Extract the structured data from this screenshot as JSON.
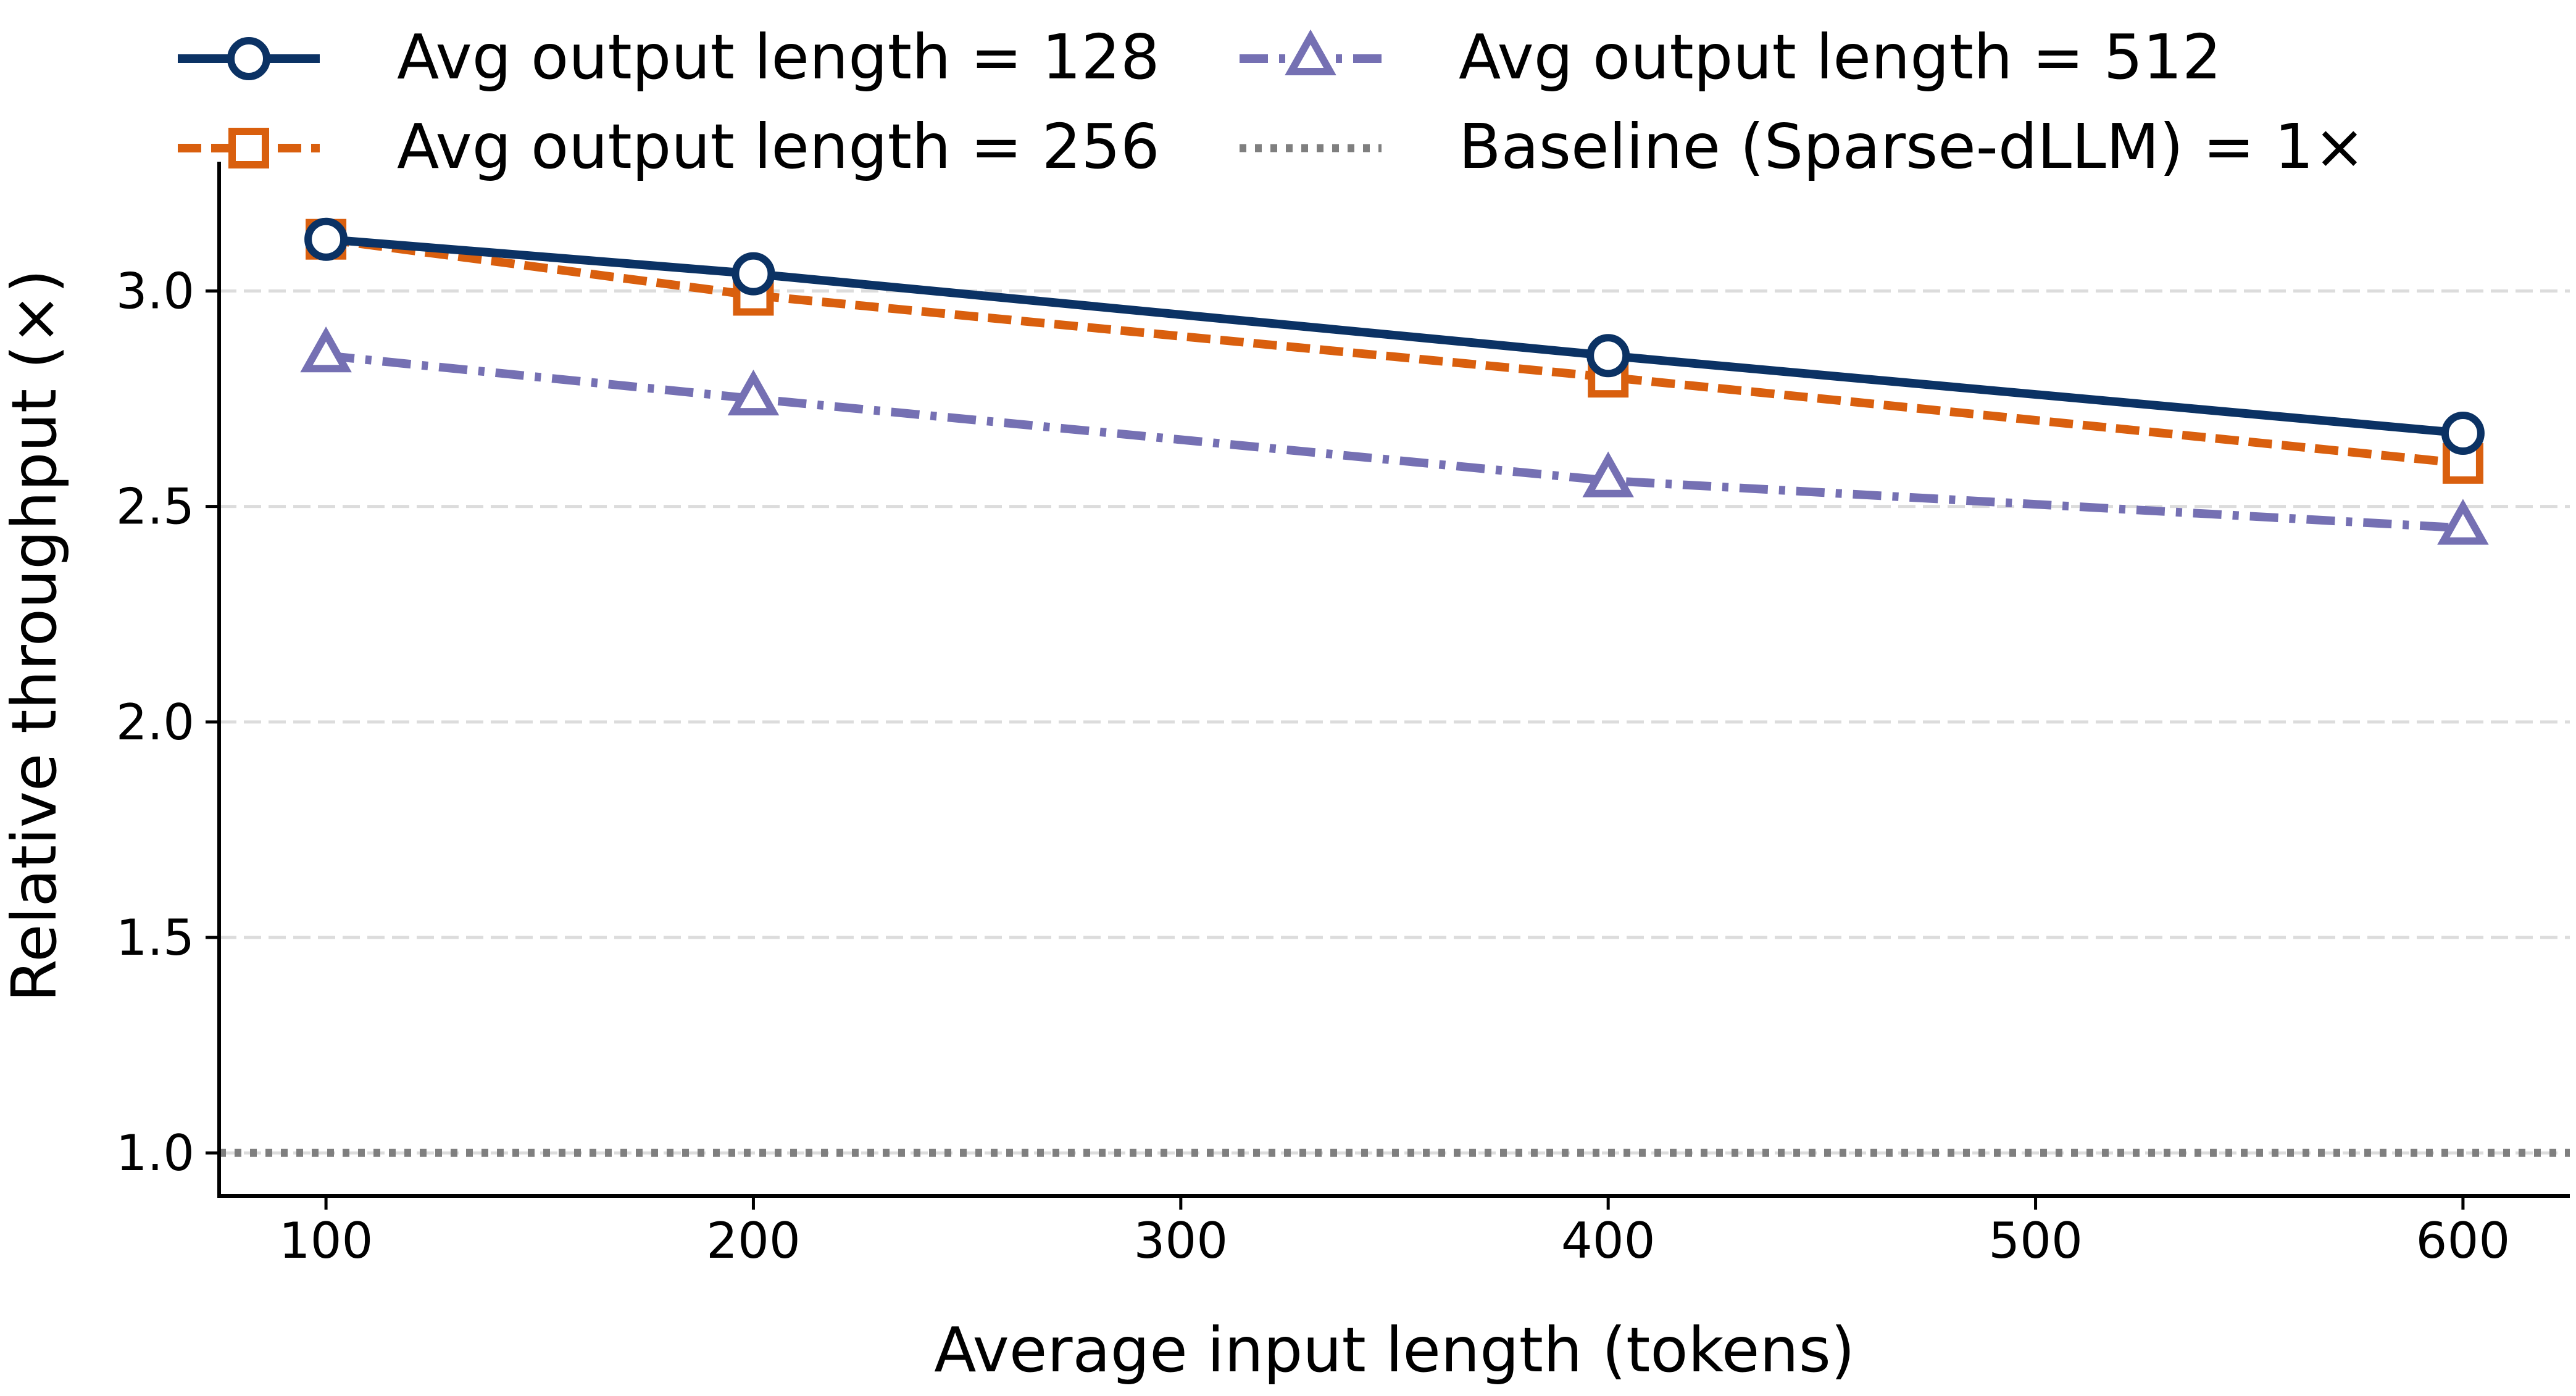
{
  "chart_data": {
    "type": "line",
    "xlabel": "Average input length (tokens)",
    "ylabel": "Relative throughput (×)",
    "xlim": [
      75,
      625
    ],
    "ylim": [
      0.9,
      3.3
    ],
    "xticks": [
      100,
      200,
      300,
      400,
      500,
      600
    ],
    "xtick_labels": [
      "100",
      "200",
      "300",
      "400",
      "500",
      "600"
    ],
    "yticks": [
      1.0,
      1.5,
      2.0,
      2.5,
      3.0
    ],
    "ytick_labels": [
      "1.0",
      "1.5",
      "2.0",
      "2.5",
      "3.0"
    ],
    "grid": "horizontal dashed",
    "legend_position": "top",
    "x": [
      100,
      200,
      400,
      600
    ],
    "series": [
      {
        "name": "Avg output length = 128",
        "values": [
          3.12,
          3.04,
          2.85,
          2.67
        ],
        "color": "#0b3264",
        "dash": "solid",
        "marker": "circle"
      },
      {
        "name": "Avg output length = 256",
        "values": [
          3.12,
          2.99,
          2.8,
          2.6
        ],
        "color": "#d95f0e",
        "dash": "dashed",
        "marker": "square"
      },
      {
        "name": "Avg output length = 512",
        "values": [
          2.85,
          2.75,
          2.56,
          2.45
        ],
        "color": "#7570b3",
        "dash": "dashdot",
        "marker": "triangle"
      }
    ],
    "baseline": {
      "name": "Baseline (Sparse-dLLM) = 1×",
      "value": 1.0,
      "color": "#7f7f7f",
      "dash": "dotted"
    }
  }
}
